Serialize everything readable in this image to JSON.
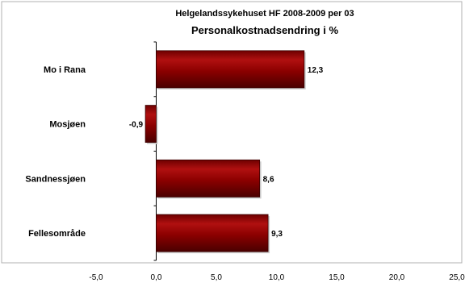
{
  "chart_data": {
    "type": "bar",
    "orientation": "horizontal",
    "title": "Helgelandssykehuset HF 2008-2009 per 03",
    "subtitle": "Personalkostnadsendring i %",
    "categories": [
      "Mo i Rana",
      "Mosjøen",
      "Sandnessjøen",
      "Fellesområde"
    ],
    "values": [
      12.3,
      -0.9,
      8.6,
      9.3
    ],
    "value_labels": [
      "12,3",
      "-0,9",
      "8,6",
      "9,3"
    ],
    "xlim": [
      -5,
      25
    ],
    "x_ticks": [
      -5,
      0,
      5,
      10,
      15,
      20,
      25
    ],
    "x_tick_labels": [
      "-5,0",
      "0,0",
      "5,0",
      "10,0",
      "15,0",
      "20,0",
      "25,0"
    ],
    "grid": false,
    "legend": "none",
    "colors": {
      "bar_dark": "#5a0000",
      "bar_mid": "#8b0000",
      "bar_light": "#b01010",
      "plot_background": "#ffffff",
      "frame": "#b0b0b0"
    }
  }
}
